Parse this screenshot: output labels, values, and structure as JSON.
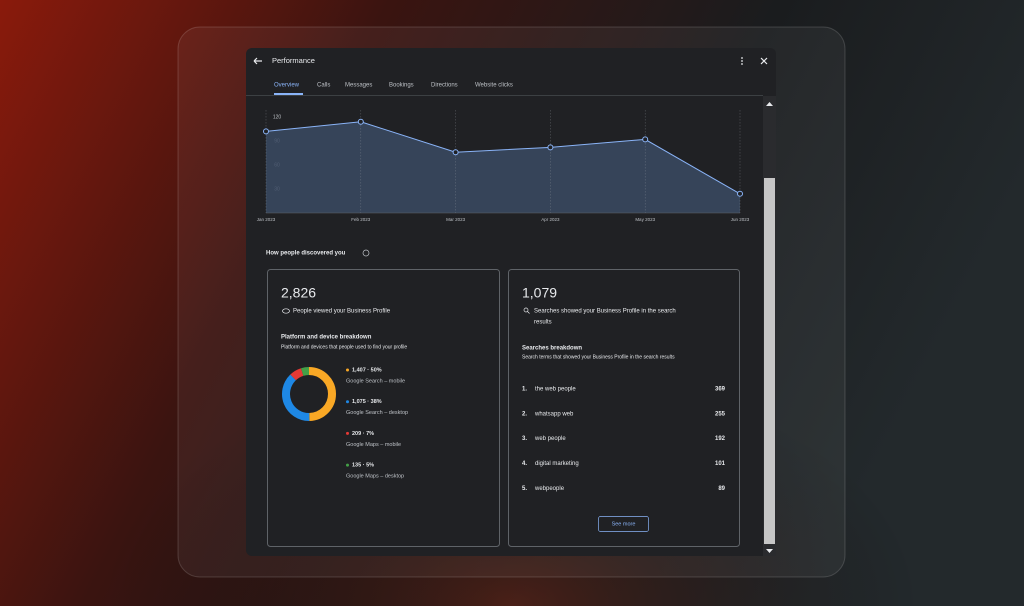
{
  "header": {
    "title": "Performance"
  },
  "tabs": [
    "Overview",
    "Calls",
    "Messages",
    "Bookings",
    "Directions",
    "Website clicks"
  ],
  "chart_data": [
    {
      "type": "line",
      "categories": [
        "Jan 2023",
        "Feb 2023",
        "Mar 2023",
        "Apr 2023",
        "May 2023",
        "Jun 2023"
      ],
      "values": [
        102,
        114,
        76,
        82,
        92,
        24
      ],
      "color": "#8ab4f8",
      "ylim": [
        0,
        120
      ],
      "yticks": [
        30,
        60,
        90,
        120
      ]
    },
    {
      "type": "pie",
      "categories": [
        "Google Search – mobile",
        "Google Search – desktop",
        "Google Maps – mobile",
        "Google Maps – desktop"
      ],
      "values": [
        1407,
        1075,
        209,
        135
      ],
      "value_labels": [
        "1,407 · 50%",
        "1,075 · 38%",
        "209 · 7%",
        "135 · 5%"
      ],
      "colors": [
        "#f9a825",
        "#1e88e5",
        "#e53935",
        "#43a047"
      ]
    }
  ],
  "section": {
    "title": "How people discovered you"
  },
  "views": {
    "total": "2,826",
    "label": "People viewed your Business Profile",
    "breakdown_title": "Platform and device breakdown",
    "breakdown_subtitle": "Platform and devices that people used to find your profile"
  },
  "searches": {
    "total": "1,079",
    "label_lines": [
      "Searches showed your Business Profile in the search",
      "results"
    ],
    "breakdown_title": "Searches breakdown",
    "breakdown_subtitle": "Search terms that showed your Business Profile in the search results",
    "rows": [
      {
        "rank": "1.",
        "term": "the web people",
        "count": 369
      },
      {
        "rank": "2.",
        "term": "whatsapp web",
        "count": 255
      },
      {
        "rank": "3.",
        "term": "web people",
        "count": 192
      },
      {
        "rank": "4.",
        "term": "digital marketing",
        "count": 101
      },
      {
        "rank": "5.",
        "term": "webpeople",
        "count": 89
      }
    ],
    "button": "See more"
  }
}
